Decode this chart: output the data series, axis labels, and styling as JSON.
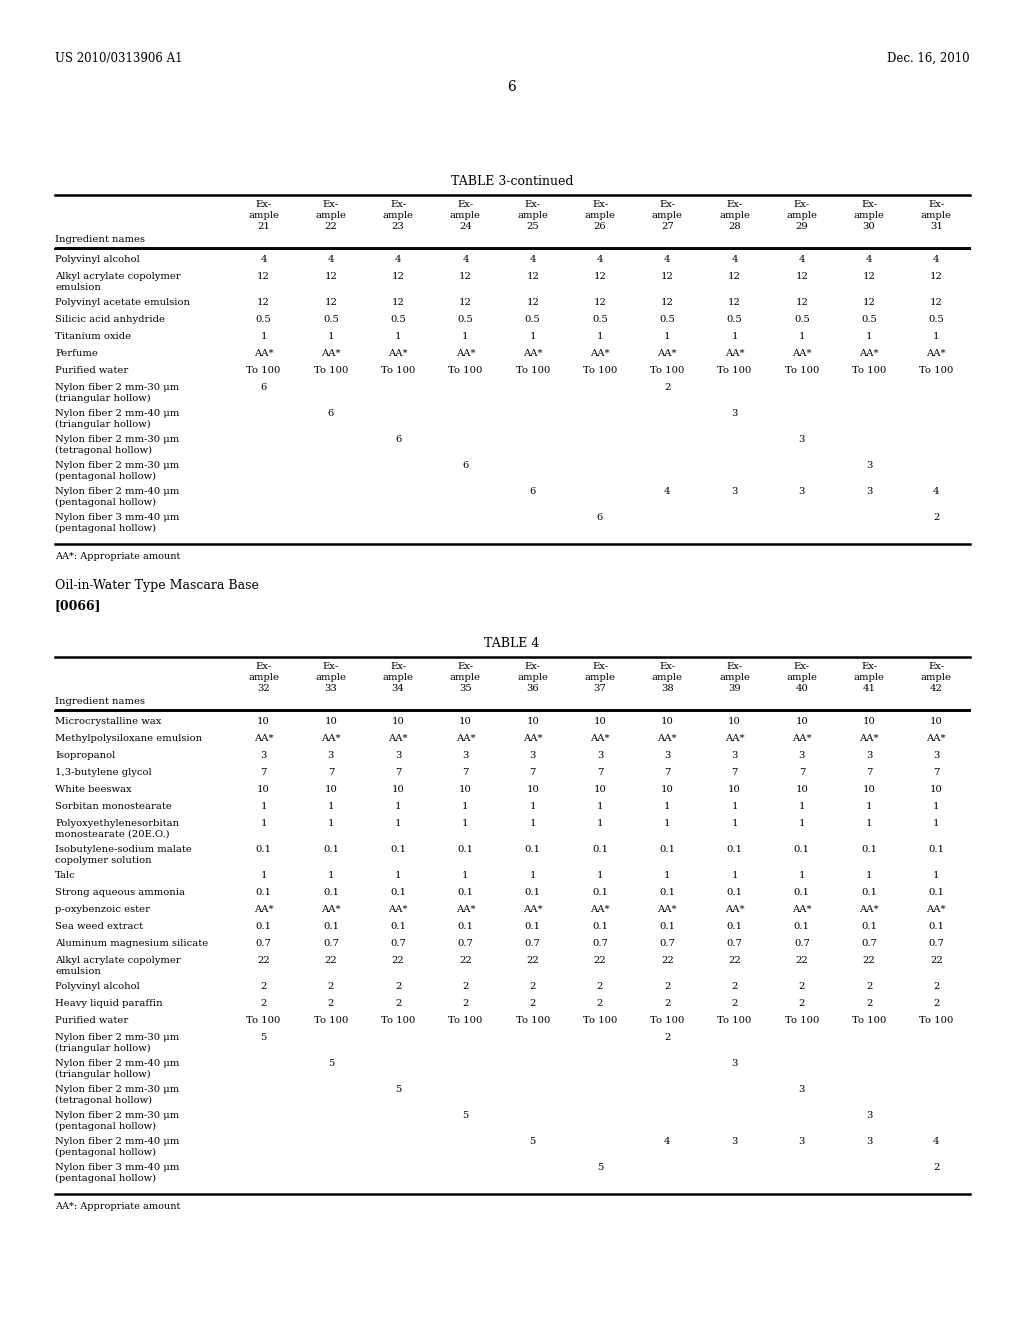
{
  "page_header_left": "US 2010/0313906 A1",
  "page_header_right": "Dec. 16, 2010",
  "page_number": "6",
  "table3_title": "TABLE 3-continued",
  "table3_columns": [
    "Ingredient names",
    "Ex-\nample\n21",
    "Ex-\nample\n22",
    "Ex-\nample\n23",
    "Ex-\nample\n24",
    "Ex-\nample\n25",
    "Ex-\nample\n26",
    "Ex-\nample\n27",
    "Ex-\nample\n28",
    "Ex-\nample\n29",
    "Ex-\nample\n30",
    "Ex-\nample\n31"
  ],
  "table3_rows": [
    [
      "Polyvinyl alcohol",
      "4",
      "4",
      "4",
      "4",
      "4",
      "4",
      "4",
      "4",
      "4",
      "4",
      "4"
    ],
    [
      "Alkyl acrylate copolymer\nemulsion",
      "12",
      "12",
      "12",
      "12",
      "12",
      "12",
      "12",
      "12",
      "12",
      "12",
      "12"
    ],
    [
      "Polyvinyl acetate emulsion",
      "12",
      "12",
      "12",
      "12",
      "12",
      "12",
      "12",
      "12",
      "12",
      "12",
      "12"
    ],
    [
      "Silicic acid anhydride",
      "0.5",
      "0.5",
      "0.5",
      "0.5",
      "0.5",
      "0.5",
      "0.5",
      "0.5",
      "0.5",
      "0.5",
      "0.5"
    ],
    [
      "Titanium oxide",
      "1",
      "1",
      "1",
      "1",
      "1",
      "1",
      "1",
      "1",
      "1",
      "1",
      "1"
    ],
    [
      "Perfume",
      "AA*",
      "AA*",
      "AA*",
      "AA*",
      "AA*",
      "AA*",
      "AA*",
      "AA*",
      "AA*",
      "AA*",
      "AA*"
    ],
    [
      "Purified water",
      "To 100",
      "To 100",
      "To 100",
      "To 100",
      "To 100",
      "To 100",
      "To 100",
      "To 100",
      "To 100",
      "To 100",
      "To 100"
    ],
    [
      "Nylon fiber 2 mm-30 μm\n(triangular hollow)",
      "6",
      "",
      "",
      "",
      "",
      "",
      "2",
      "",
      "",
      "",
      ""
    ],
    [
      "Nylon fiber 2 mm-40 μm\n(triangular hollow)",
      "",
      "6",
      "",
      "",
      "",
      "",
      "",
      "3",
      "",
      "",
      ""
    ],
    [
      "Nylon fiber 2 mm-30 μm\n(tetragonal hollow)",
      "",
      "",
      "6",
      "",
      "",
      "",
      "",
      "",
      "3",
      "",
      ""
    ],
    [
      "Nylon fiber 2 mm-30 μm\n(pentagonal hollow)",
      "",
      "",
      "",
      "6",
      "",
      "",
      "",
      "",
      "",
      "3",
      ""
    ],
    [
      "Nylon fiber 2 mm-40 μm\n(pentagonal hollow)",
      "",
      "",
      "",
      "",
      "6",
      "",
      "4",
      "3",
      "3",
      "3",
      "4"
    ],
    [
      "Nylon fiber 3 mm-40 μm\n(pentagonal hollow)",
      "",
      "",
      "",
      "",
      "",
      "6",
      "",
      "",
      "",
      "",
      "2"
    ]
  ],
  "table3_footnote": "AA*: Appropriate amount",
  "section_text": "Oil-in-Water Type Mascara Base",
  "section_ref": "[0066]",
  "table4_title": "TABLE 4",
  "table4_columns": [
    "Ingredient names",
    "Ex-\nample\n32",
    "Ex-\nample\n33",
    "Ex-\nample\n34",
    "Ex-\nample\n35",
    "Ex-\nample\n36",
    "Ex-\nample\n37",
    "Ex-\nample\n38",
    "Ex-\nample\n39",
    "Ex-\nample\n40",
    "Ex-\nample\n41",
    "Ex-\nample\n42"
  ],
  "table4_rows": [
    [
      "Microcrystalline wax",
      "10",
      "10",
      "10",
      "10",
      "10",
      "10",
      "10",
      "10",
      "10",
      "10",
      "10"
    ],
    [
      "Methylpolysiloxane emulsion",
      "AA*",
      "AA*",
      "AA*",
      "AA*",
      "AA*",
      "AA*",
      "AA*",
      "AA*",
      "AA*",
      "AA*",
      "AA*"
    ],
    [
      "Isopropanol",
      "3",
      "3",
      "3",
      "3",
      "3",
      "3",
      "3",
      "3",
      "3",
      "3",
      "3"
    ],
    [
      "1,3-butylene glycol",
      "7",
      "7",
      "7",
      "7",
      "7",
      "7",
      "7",
      "7",
      "7",
      "7",
      "7"
    ],
    [
      "White beeswax",
      "10",
      "10",
      "10",
      "10",
      "10",
      "10",
      "10",
      "10",
      "10",
      "10",
      "10"
    ],
    [
      "Sorbitan monostearate",
      "1",
      "1",
      "1",
      "1",
      "1",
      "1",
      "1",
      "1",
      "1",
      "1",
      "1"
    ],
    [
      "Polyoxyethylenesorbitan\nmonostearate (20E.O.)",
      "1",
      "1",
      "1",
      "1",
      "1",
      "1",
      "1",
      "1",
      "1",
      "1",
      "1"
    ],
    [
      "Isobutylene-sodium malate\ncopolymer solution",
      "0.1",
      "0.1",
      "0.1",
      "0.1",
      "0.1",
      "0.1",
      "0.1",
      "0.1",
      "0.1",
      "0.1",
      "0.1"
    ],
    [
      "Talc",
      "1",
      "1",
      "1",
      "1",
      "1",
      "1",
      "1",
      "1",
      "1",
      "1",
      "1"
    ],
    [
      "Strong aqueous ammonia",
      "0.1",
      "0.1",
      "0.1",
      "0.1",
      "0.1",
      "0.1",
      "0.1",
      "0.1",
      "0.1",
      "0.1",
      "0.1"
    ],
    [
      "p-oxybenzoic ester",
      "AA*",
      "AA*",
      "AA*",
      "AA*",
      "AA*",
      "AA*",
      "AA*",
      "AA*",
      "AA*",
      "AA*",
      "AA*"
    ],
    [
      "Sea weed extract",
      "0.1",
      "0.1",
      "0.1",
      "0.1",
      "0.1",
      "0.1",
      "0.1",
      "0.1",
      "0.1",
      "0.1",
      "0.1"
    ],
    [
      "Aluminum magnesium silicate",
      "0.7",
      "0.7",
      "0.7",
      "0.7",
      "0.7",
      "0.7",
      "0.7",
      "0.7",
      "0.7",
      "0.7",
      "0.7"
    ],
    [
      "Alkyl acrylate copolymer\nemulsion",
      "22",
      "22",
      "22",
      "22",
      "22",
      "22",
      "22",
      "22",
      "22",
      "22",
      "22"
    ],
    [
      "Polyvinyl alcohol",
      "2",
      "2",
      "2",
      "2",
      "2",
      "2",
      "2",
      "2",
      "2",
      "2",
      "2"
    ],
    [
      "Heavy liquid paraffin",
      "2",
      "2",
      "2",
      "2",
      "2",
      "2",
      "2",
      "2",
      "2",
      "2",
      "2"
    ],
    [
      "Purified water",
      "To 100",
      "To 100",
      "To 100",
      "To 100",
      "To 100",
      "To 100",
      "To 100",
      "To 100",
      "To 100",
      "To 100",
      "To 100"
    ],
    [
      "Nylon fiber 2 mm-30 μm\n(triangular hollow)",
      "5",
      "",
      "",
      "",
      "",
      "",
      "2",
      "",
      "",
      "",
      ""
    ],
    [
      "Nylon fiber 2 mm-40 μm\n(triangular hollow)",
      "",
      "5",
      "",
      "",
      "",
      "",
      "",
      "3",
      "",
      "",
      ""
    ],
    [
      "Nylon fiber 2 mm-30 μm\n(tetragonal hollow)",
      "",
      "",
      "5",
      "",
      "",
      "",
      "",
      "",
      "3",
      "",
      ""
    ],
    [
      "Nylon fiber 2 mm-30 μm\n(pentagonal hollow)",
      "",
      "",
      "",
      "5",
      "",
      "",
      "",
      "",
      "",
      "3",
      ""
    ],
    [
      "Nylon fiber 2 mm-40 μm\n(pentagonal hollow)",
      "",
      "",
      "",
      "",
      "5",
      "",
      "4",
      "3",
      "3",
      "3",
      "4"
    ],
    [
      "Nylon fiber 3 mm-40 μm\n(pentagonal hollow)",
      "",
      "",
      "",
      "",
      "",
      "5",
      "",
      "",
      "",
      "",
      "2"
    ]
  ],
  "table4_footnote": "AA*: Appropriate amount",
  "bg_color": "#ffffff",
  "text_color": "#000000"
}
